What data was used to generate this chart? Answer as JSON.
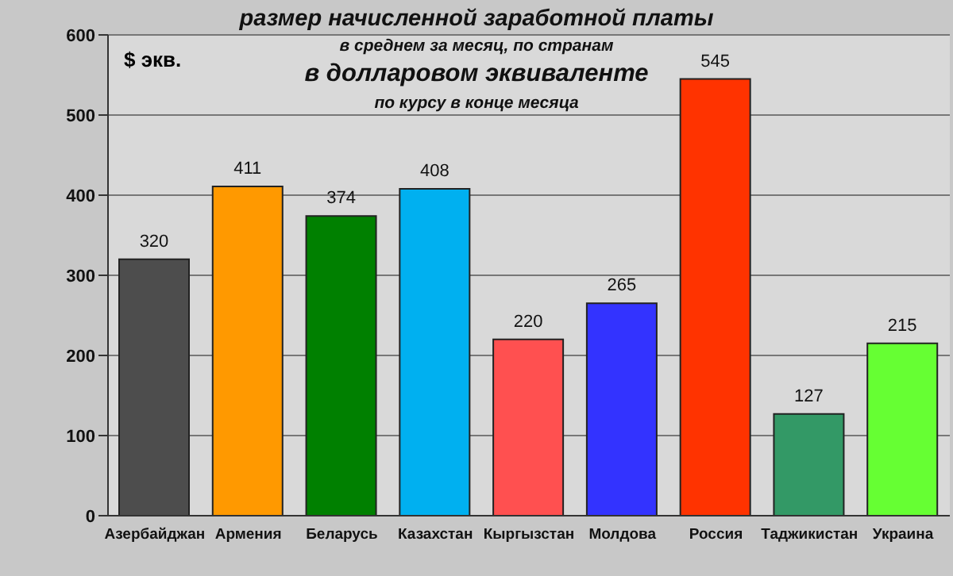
{
  "chart_data": {
    "type": "bar",
    "title": "размер  начисленной заработной платы",
    "subtitle": "в среднем за месяц, по странам",
    "annotations": [
      "в долларовом эквиваленте",
      "по курсу в конце месяца"
    ],
    "ylabel": "$ экв.",
    "categories": [
      "Азербайджан",
      "Армения",
      "Беларусь",
      "Казахстан",
      "Кыргызстан",
      "Молдова",
      "Россия",
      "Таджикистан",
      "Украина"
    ],
    "values": [
      320,
      411,
      374,
      408,
      220,
      265,
      545,
      127,
      215
    ],
    "colors": [
      "#4d4d4d",
      "#ff9900",
      "#008000",
      "#00b0f0",
      "#ff5050",
      "#3333ff",
      "#ff3300",
      "#339966",
      "#66ff33"
    ],
    "ylim": [
      0,
      600
    ],
    "yticks": [
      0,
      100,
      200,
      300,
      400,
      500,
      600
    ],
    "grid": "y",
    "data_labels": true
  }
}
